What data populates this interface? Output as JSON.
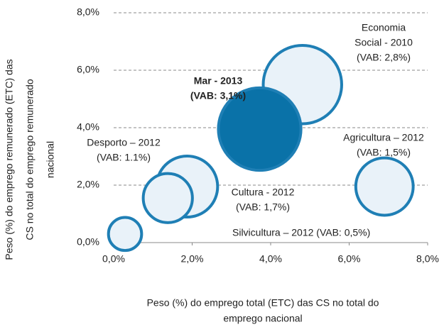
{
  "chart_data": {
    "type": "bubble",
    "x": [
      4.81,
      6.9,
      1.87,
      1.38,
      0.29,
      3.72
    ],
    "y": [
      5.5,
      1.95,
      1.95,
      1.55,
      0.3,
      3.95
    ],
    "sizes": [
      2.8,
      1.5,
      1.7,
      1.1,
      0.5,
      3.1
    ],
    "labels": [
      [
        "Economia",
        "Social - 2010",
        "(VAB: 2,8%)"
      ],
      [
        "Agricultura – 2012",
        "(VAB: 1,5%)"
      ],
      [
        "Cultura - 2012",
        "(VAB: 1,7%)"
      ],
      [
        "Desporto – 2012",
        "(VAB: 1.1%)"
      ],
      [
        "Silvicultura – 2012 (VAB: 0,5%)"
      ],
      [
        "Mar - 2013",
        "(VAB: 3,1%)"
      ]
    ],
    "label_bold": [
      false,
      false,
      false,
      false,
      false,
      true
    ],
    "colors": [
      "#e9f2f9",
      "#e9f2f9",
      "#e9f2f9",
      "#e9f2f9",
      "#e9f2f9",
      "#0a72a8"
    ],
    "edge_color": "#1f7fb5",
    "xlim": [
      0,
      8
    ],
    "ylim": [
      0,
      8
    ],
    "xticks": [
      {
        "value": 0,
        "label": "0,0%"
      },
      {
        "value": 2,
        "label": "2,0%"
      },
      {
        "value": 4,
        "label": "4,0%"
      },
      {
        "value": 6,
        "label": "6,0%"
      },
      {
        "value": 8,
        "label": "8,0%"
      }
    ],
    "yticks": [
      {
        "value": 0,
        "label": "0,0%"
      },
      {
        "value": 2,
        "label": "2,0%"
      },
      {
        "value": 4,
        "label": "4,0%"
      },
      {
        "value": 6,
        "label": "6,0%"
      },
      {
        "value": 8,
        "label": "8,0%"
      }
    ],
    "xlabel": [
      "Peso  (%) do emprego  total (ETC) das CS no total do",
      "emprego nacional"
    ],
    "ylabel": [
      "Peso (%) do emprego remunerado (ETC) das",
      "CS no total do emprego remunerado",
      "nacional"
    ],
    "grid": true
  }
}
